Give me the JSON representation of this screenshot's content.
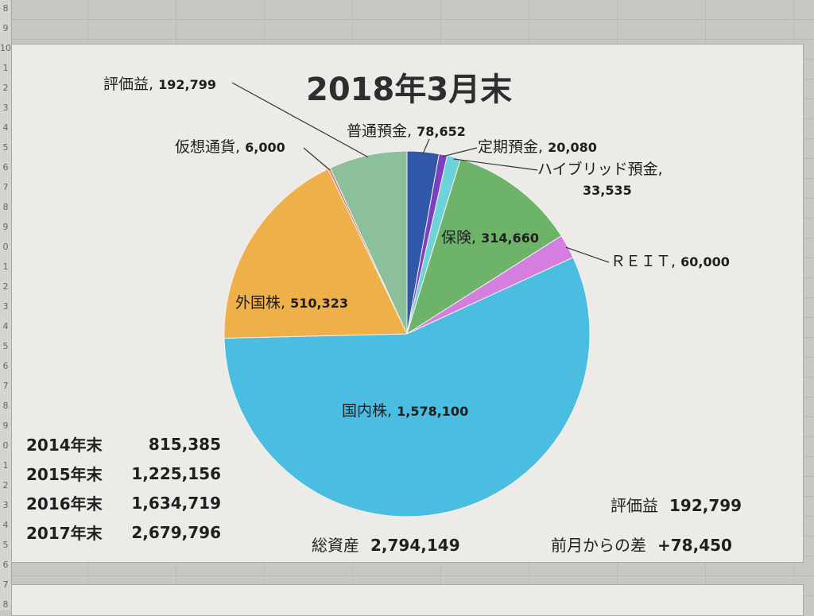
{
  "chart_data": {
    "type": "pie",
    "title": "2018年3月末",
    "slices": [
      {
        "label": "普通預金",
        "value": 78652,
        "value_text": "78,652",
        "color": "#2f58a8"
      },
      {
        "label": "定期預金",
        "value": 20080,
        "value_text": "20,080",
        "color": "#7b3fbf"
      },
      {
        "label": "ハイブリッド預金",
        "value": 33535,
        "value_text": "33,535",
        "color": "#6dd3d8"
      },
      {
        "label": "保険",
        "value": 314660,
        "value_text": "314,660",
        "color": "#6db36a"
      },
      {
        "label": "ＲＥＩＴ",
        "value": 60000,
        "value_text": "60,000",
        "color": "#d67ee0"
      },
      {
        "label": "国内株",
        "value": 1578100,
        "value_text": "1,578,100",
        "color": "#4bbde0"
      },
      {
        "label": "外国株",
        "value": 510323,
        "value_text": "510,323",
        "color": "#efb04a"
      },
      {
        "label": "仮想通貨",
        "value": 6000,
        "value_text": "6,000",
        "color": "#e07a7a"
      },
      {
        "label": "評価益",
        "value": 192799,
        "value_text": "192,799",
        "color": "#8bc09a"
      }
    ]
  },
  "history": [
    {
      "year": "2014年末",
      "value": "815,385"
    },
    {
      "year": "2015年末",
      "value": "1,225,156"
    },
    {
      "year": "2016年末",
      "value": "1,634,719"
    },
    {
      "year": "2017年末",
      "value": "2,679,796"
    }
  ],
  "summary": {
    "total_label": "総資産",
    "total_value": "2,794,149",
    "gain_label": "評価益",
    "gain_value": "192,799",
    "diff_label": "前月からの差",
    "diff_value": "+78,450"
  },
  "rows": [
    "8",
    "9",
    "10",
    "1",
    "2",
    "3",
    "4",
    "5",
    "6",
    "7",
    "8",
    "9",
    "0",
    "1",
    "2",
    "3",
    "4",
    "5",
    "6",
    "7",
    "8",
    "9",
    "0",
    "1",
    "2",
    "3",
    "4",
    "5",
    "6",
    "7",
    "8"
  ]
}
